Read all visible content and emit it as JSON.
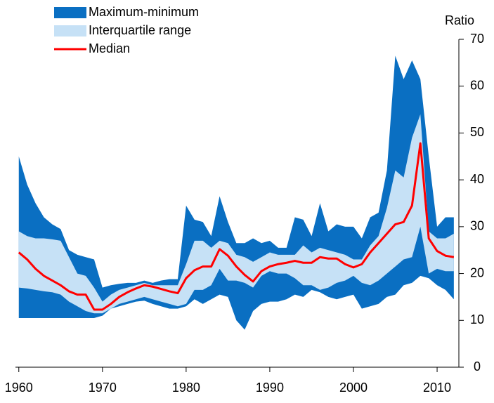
{
  "chart_data": {
    "type": "band",
    "y_axis_label": "Ratio",
    "x": [
      1960,
      1961,
      1962,
      1963,
      1964,
      1965,
      1966,
      1967,
      1968,
      1969,
      1970,
      1971,
      1972,
      1973,
      1974,
      1975,
      1976,
      1977,
      1978,
      1979,
      1980,
      1981,
      1982,
      1983,
      1984,
      1985,
      1986,
      1987,
      1988,
      1989,
      1990,
      1991,
      1992,
      1993,
      1994,
      1995,
      1996,
      1997,
      1998,
      1999,
      2000,
      2001,
      2002,
      2003,
      2004,
      2005,
      2006,
      2007,
      2008,
      2009,
      2010,
      2011,
      2012
    ],
    "series": [
      {
        "name": "Maximum-minimum",
        "color": "#0a6fc2",
        "high": [
          45,
          39,
          35,
          32,
          30.5,
          29.5,
          25,
          24,
          23.5,
          23,
          17,
          17.5,
          17.8,
          18,
          18,
          18.5,
          18,
          18.5,
          18.8,
          18.8,
          34.5,
          31.5,
          31,
          28,
          36.5,
          31,
          26.5,
          26.5,
          27.5,
          26.5,
          27,
          25.5,
          25.5,
          32,
          31.5,
          28,
          35,
          29,
          30.5,
          30,
          30,
          27.5,
          32,
          33,
          42,
          66.5,
          61.5,
          65.5,
          61.5,
          45,
          30,
          32,
          32
        ],
        "low": [
          10.5,
          10.5,
          10.5,
          10.5,
          10.5,
          10.5,
          10.5,
          10.5,
          10.5,
          10.5,
          11,
          12.5,
          13,
          13.5,
          14,
          14.2,
          13.5,
          13,
          12.5,
          12.5,
          13,
          14.5,
          13.5,
          14.5,
          15.5,
          15,
          10,
          8,
          12,
          13.5,
          14,
          14,
          14.5,
          15.5,
          15,
          16.5,
          16,
          15,
          14.5,
          15,
          15.5,
          12.5,
          13,
          13.5,
          15,
          15.5,
          17.5,
          18,
          19.5,
          19,
          17.5,
          16.5,
          14.5
        ]
      },
      {
        "name": "Interquartile range",
        "color": "#c6e1f6",
        "high": [
          29,
          28,
          27.5,
          27.5,
          27.3,
          27,
          23.5,
          20,
          19.5,
          17,
          14,
          15.5,
          16.5,
          17,
          17.5,
          18,
          17.5,
          17.5,
          17.5,
          17.5,
          22,
          27,
          27,
          25.5,
          27,
          26.5,
          24,
          23.5,
          22.5,
          23.5,
          24.5,
          24,
          24,
          24,
          26,
          24.5,
          25.5,
          25,
          24.5,
          24,
          23,
          23,
          26,
          28,
          34,
          42,
          40.5,
          49,
          54,
          29,
          27.5,
          27.5,
          28.5
        ],
        "low": [
          17,
          16.8,
          16.5,
          16.2,
          16,
          15.5,
          14,
          13,
          12,
          11.5,
          11.5,
          12.5,
          13.5,
          14,
          14.5,
          15,
          14.5,
          14,
          13.5,
          13,
          13.5,
          16.5,
          16.5,
          17.5,
          21,
          18.5,
          18.5,
          18,
          17,
          19.5,
          20.5,
          20,
          20,
          19,
          17.5,
          17.5,
          16.5,
          17,
          18,
          18.5,
          19.5,
          18,
          17.5,
          18.5,
          20,
          21.5,
          23,
          23.5,
          30,
          20,
          21,
          20.5,
          20.5
        ]
      },
      {
        "name": "Median",
        "color": "#ff0000",
        "values": [
          24.5,
          23,
          21,
          19.5,
          18.5,
          17.5,
          16.2,
          15.5,
          15.5,
          12.3,
          12.3,
          13.5,
          15,
          16,
          16.8,
          17.5,
          17.2,
          16.7,
          16.2,
          15.8,
          19,
          20.7,
          21.5,
          21.5,
          25.2,
          23.8,
          21.5,
          19.7,
          18.3,
          20.5,
          21.5,
          22,
          22.3,
          22.7,
          22.3,
          22.3,
          23.5,
          23.2,
          23.2,
          22,
          21.3,
          22,
          24.5,
          26.5,
          28.5,
          30.5,
          31,
          34.5,
          47.8,
          27.5,
          24.8,
          23.8,
          23.5
        ]
      }
    ],
    "xlim": [
      1959.6,
      2012.6
    ],
    "xticks": [
      1960,
      1970,
      1980,
      1990,
      2000,
      2010
    ],
    "ylim": [
      0,
      70
    ],
    "yticks": [
      0,
      10,
      20,
      30,
      40,
      50,
      60,
      70
    ],
    "legend": "upper left"
  }
}
